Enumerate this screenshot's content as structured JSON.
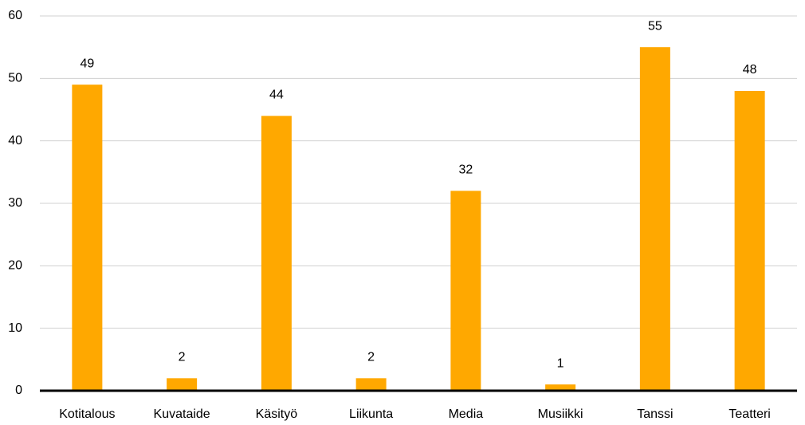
{
  "chart_data": {
    "type": "bar",
    "categories": [
      "Kotitalous",
      "Kuvataide",
      "Käsityö",
      "Liikunta",
      "Media",
      "Musiikki",
      "Tanssi",
      "Teatteri"
    ],
    "values": [
      49,
      2,
      44,
      2,
      32,
      1,
      55,
      48
    ],
    "color": "#ffa800",
    "ylim": [
      0,
      60
    ],
    "yticks": [
      0,
      10,
      20,
      30,
      40,
      50,
      60
    ],
    "grid": true
  }
}
